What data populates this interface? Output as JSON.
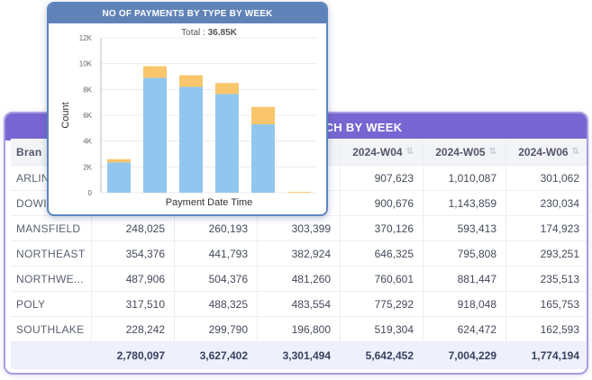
{
  "table": {
    "title": "CH BY WEEK",
    "columns": [
      "Bran",
      "",
      "",
      "",
      "2024-W04",
      "2024-W05",
      "2024-W06"
    ],
    "rows": [
      {
        "branch": "ARLIN",
        "values": [
          "",
          "",
          "",
          "907,623",
          "1,010,087",
          "301,062"
        ]
      },
      {
        "branch": "DOWI",
        "values": [
          "",
          "",
          "",
          "900,676",
          "1,143,859",
          "230,034"
        ]
      },
      {
        "branch": "MANSFIELD",
        "values": [
          "248,025",
          "260,193",
          "303,399",
          "370,126",
          "593,413",
          "174,923"
        ]
      },
      {
        "branch": "NORTHEAST",
        "values": [
          "354,376",
          "441,793",
          "382,924",
          "646,325",
          "795,808",
          "293,251"
        ]
      },
      {
        "branch": "NORTHWE...",
        "values": [
          "487,906",
          "504,376",
          "481,260",
          "760,601",
          "881,447",
          "235,513"
        ]
      },
      {
        "branch": "POLY",
        "values": [
          "317,510",
          "488,325",
          "483,554",
          "775,292",
          "918,048",
          "165,753"
        ]
      },
      {
        "branch": "SOUTHLAKE",
        "values": [
          "228,242",
          "299,790",
          "196,800",
          "519,304",
          "624,472",
          "162,593"
        ]
      }
    ],
    "totals": [
      "2,780,097",
      "3,627,402",
      "3,301,494",
      "5,642,452",
      "7,004,229",
      "1,774,194"
    ]
  },
  "chart_data": {
    "type": "bar",
    "title": "NO OF PAYMENTS BY TYPE BY WEEK",
    "subtitle_label": "Total :",
    "subtitle_value": "36.85K",
    "xlabel": "Payment Date Time",
    "ylabel": "Count",
    "ylim": [
      0,
      12000
    ],
    "yticks": [
      "0",
      "2K",
      "4K",
      "6K",
      "8K",
      "10K",
      "12K"
    ],
    "categories": [
      "",
      "",
      "",
      "",
      "",
      ""
    ],
    "series": [
      {
        "values": [
          2350,
          8900,
          8200,
          7650,
          5300,
          0
        ],
        "color": "#91c7ee"
      },
      {
        "values": [
          250,
          900,
          900,
          850,
          1350,
          60
        ],
        "color": "#f9c66b"
      }
    ]
  }
}
